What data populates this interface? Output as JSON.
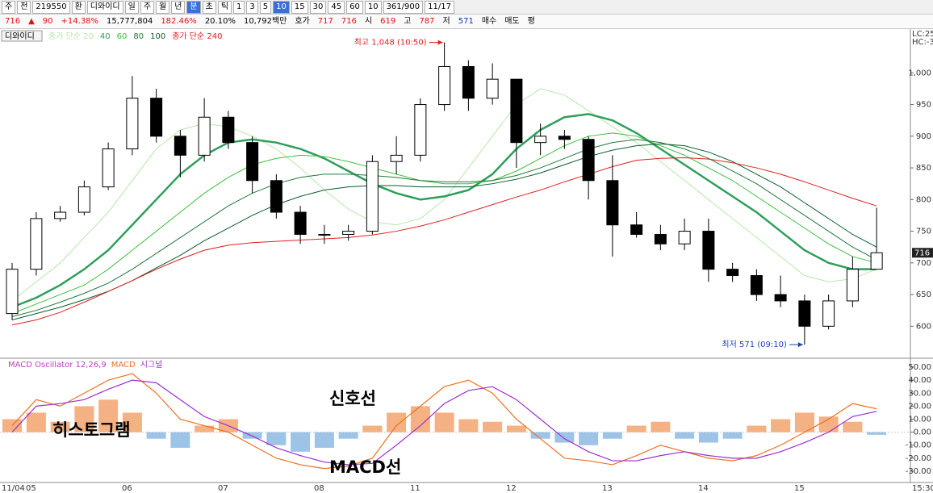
{
  "toolbar": [
    "주",
    "전",
    "219550",
    "환",
    "디와이디",
    "일",
    "주",
    "월",
    "년",
    "분",
    "초",
    "틱",
    "1",
    "3",
    "5",
    "10",
    "15",
    "30",
    "45",
    "60",
    "10",
    "361/900",
    "11/17"
  ],
  "quote_bar": [
    "716",
    "▲",
    "90",
    "+14.38%",
    "15,777,804",
    "182.46%",
    "20.10%",
    "10,792백만",
    "호가",
    "717",
    "716",
    "시",
    "619",
    "고",
    "787",
    "저",
    "571",
    "매수",
    "매도",
    "평"
  ],
  "corner_labels": [
    "LC:25",
    "HC:-3"
  ],
  "chart_data": [
    {
      "type": "candlestick",
      "legend_title": "디와이디",
      "categories": [
        "11/04",
        "05",
        null,
        null,
        null,
        "06",
        null,
        null,
        null,
        "07",
        null,
        null,
        null,
        "08",
        null,
        null,
        null,
        "11",
        null,
        null,
        null,
        "12",
        null,
        null,
        null,
        "13",
        null,
        null,
        null,
        "14",
        null,
        null,
        null,
        "15",
        null,
        null,
        null
      ],
      "open": [
        620,
        690,
        770,
        780,
        820,
        880,
        960,
        900,
        870,
        930,
        890,
        830,
        780,
        745,
        745,
        750,
        860,
        870,
        950,
        1010,
        960,
        990,
        890,
        900,
        895,
        830,
        760,
        745,
        730,
        750,
        690,
        680,
        650,
        640,
        600,
        640,
        690
      ],
      "high": [
        700,
        780,
        790,
        830,
        890,
        995,
        975,
        910,
        960,
        940,
        900,
        840,
        790,
        760,
        760,
        870,
        900,
        960,
        1048,
        1020,
        1015,
        990,
        920,
        910,
        900,
        870,
        780,
        760,
        770,
        770,
        700,
        690,
        680,
        650,
        650,
        710,
        787
      ],
      "low": [
        610,
        680,
        765,
        775,
        815,
        870,
        890,
        835,
        860,
        880,
        810,
        770,
        730,
        730,
        735,
        745,
        840,
        860,
        940,
        940,
        950,
        850,
        870,
        880,
        800,
        710,
        740,
        720,
        720,
        670,
        670,
        640,
        630,
        571,
        595,
        630,
        690
      ],
      "close": [
        690,
        770,
        780,
        820,
        880,
        960,
        900,
        870,
        930,
        890,
        830,
        780,
        745,
        745,
        750,
        860,
        870,
        950,
        1010,
        960,
        990,
        890,
        900,
        895,
        830,
        760,
        745,
        730,
        750,
        690,
        680,
        650,
        640,
        600,
        640,
        690,
        716
      ],
      "up_color": "#ffffff",
      "down_color": "#000000",
      "wick_color": "#000000",
      "series": [
        {
          "name": "종가 단순 20",
          "color": "#b6e8a8",
          "width": 1,
          "values": [
            640,
            670,
            700,
            740,
            780,
            830,
            880,
            910,
            920,
            915,
            900,
            880,
            850,
            815,
            785,
            765,
            760,
            770,
            800,
            850,
            900,
            950,
            975,
            965,
            940,
            915,
            890,
            860,
            830,
            800,
            770,
            740,
            710,
            680,
            670,
            675,
            690
          ]
        },
        {
          "name": "40",
          "color": "#2e9e5b",
          "width": 2.5,
          "values": [
            630,
            645,
            665,
            690,
            720,
            760,
            800,
            840,
            870,
            890,
            895,
            890,
            880,
            865,
            845,
            825,
            810,
            800,
            805,
            815,
            840,
            880,
            910,
            930,
            935,
            925,
            905,
            880,
            855,
            830,
            805,
            780,
            750,
            720,
            700,
            690,
            690
          ]
        },
        {
          "name": "60",
          "color": "#3cc03c",
          "width": 1,
          "values": [
            620,
            635,
            650,
            665,
            690,
            720,
            750,
            780,
            810,
            835,
            855,
            865,
            870,
            868,
            860,
            850,
            840,
            830,
            825,
            825,
            830,
            845,
            865,
            885,
            900,
            905,
            900,
            885,
            870,
            850,
            830,
            805,
            780,
            755,
            730,
            710,
            700
          ]
        },
        {
          "name": "80",
          "color": "#1f7a3a",
          "width": 1,
          "values": [
            615,
            625,
            638,
            652,
            668,
            690,
            715,
            740,
            765,
            790,
            810,
            825,
            835,
            840,
            840,
            838,
            835,
            830,
            828,
            828,
            830,
            838,
            850,
            865,
            880,
            890,
            895,
            890,
            880,
            865,
            845,
            825,
            800,
            775,
            750,
            725,
            705
          ]
        },
        {
          "name": "100",
          "color": "#0b5d2a",
          "width": 1,
          "values": [
            610,
            620,
            630,
            642,
            655,
            672,
            692,
            712,
            735,
            755,
            775,
            792,
            805,
            815,
            820,
            822,
            822,
            820,
            820,
            820,
            825,
            832,
            842,
            855,
            868,
            878,
            885,
            888,
            885,
            875,
            860,
            840,
            820,
            795,
            770,
            745,
            725
          ]
        },
        {
          "name": "종가 단순 240",
          "color": "#e02020",
          "width": 1,
          "values": [
            602,
            610,
            622,
            638,
            655,
            672,
            690,
            706,
            720,
            728,
            732,
            734,
            736,
            738,
            740,
            744,
            750,
            758,
            768,
            780,
            792,
            804,
            815,
            828,
            840,
            852,
            862,
            865,
            866,
            864,
            858,
            850,
            840,
            828,
            815,
            802,
            790
          ]
        }
      ],
      "ylim": [
        552,
        1059
      ],
      "yticks": [
        {
          "value": 1000,
          "label": "1,000"
        },
        950,
        900,
        850,
        800,
        750,
        700,
        650,
        600
      ],
      "current_price": 716,
      "annotations": [
        {
          "text": "최고 1,048 (10:50)",
          "index": 18,
          "value": 1048,
          "color": "#e02020"
        },
        {
          "text": "최저 571 (09:10)",
          "index": 33,
          "value": 571,
          "color": "#1f3fbf"
        }
      ],
      "end_label": "15:30"
    },
    {
      "type": "combo",
      "legend_title": "MACD Oscillator 12,26,9",
      "series": [
        {
          "name": "MACD Oscillator 12,26,9",
          "kind": "bar",
          "color": "#f4b183",
          "negative_color": "#9dc3e6",
          "values": [
            10,
            15,
            8,
            20,
            25,
            15,
            -5,
            -12,
            5,
            10,
            -5,
            -10,
            -15,
            -12,
            -5,
            5,
            15,
            20,
            15,
            10,
            8,
            5,
            -5,
            -8,
            -10,
            -5,
            5,
            8,
            -5,
            -8,
            -5,
            5,
            10,
            15,
            12,
            8,
            -2
          ]
        },
        {
          "name": "MACD",
          "kind": "line",
          "color": "#f07020",
          "values": [
            5,
            25,
            20,
            30,
            40,
            45,
            30,
            10,
            5,
            0,
            -10,
            -20,
            -25,
            -28,
            -26,
            -20,
            5,
            20,
            35,
            40,
            30,
            10,
            -5,
            -20,
            -22,
            -25,
            -18,
            -10,
            -15,
            -20,
            -22,
            -18,
            -10,
            0,
            10,
            22,
            18
          ]
        },
        {
          "name": "시그널",
          "kind": "line",
          "color": "#9b30d0",
          "values": [
            0,
            20,
            22,
            25,
            33,
            40,
            38,
            25,
            12,
            5,
            -3,
            -12,
            -18,
            -23,
            -25,
            -24,
            -10,
            5,
            22,
            32,
            35,
            25,
            10,
            -5,
            -15,
            -22,
            -22,
            -18,
            -15,
            -18,
            -20,
            -20,
            -15,
            -8,
            0,
            12,
            16
          ]
        }
      ],
      "ylim": [
        -38.7,
        55.6
      ],
      "yticks": [
        {
          "value": 50,
          "label": "50.00"
        },
        {
          "value": 40,
          "label": "40.00"
        },
        {
          "value": 30,
          "label": "30.00"
        },
        {
          "value": 20,
          "label": "20.00"
        },
        {
          "value": 10,
          "label": "10.00"
        },
        {
          "value": 0,
          "label": "0.00"
        },
        {
          "value": -10,
          "label": "-10.00"
        },
        {
          "value": -20,
          "label": "-20.00"
        },
        {
          "value": -30,
          "label": "-30.00"
        }
      ],
      "annotations": [
        {
          "text": "신호선"
        },
        {
          "text": "히스토그램"
        },
        {
          "text": "MACD선"
        }
      ]
    }
  ]
}
